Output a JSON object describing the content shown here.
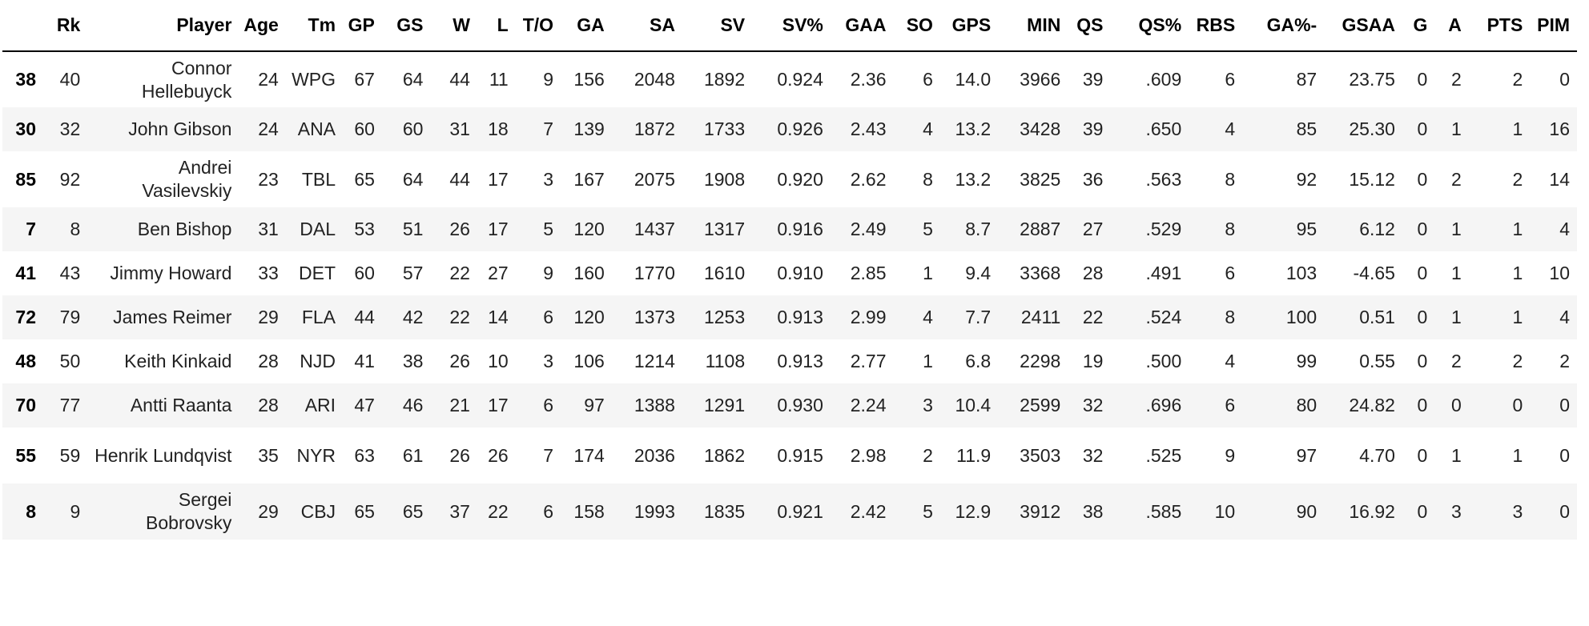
{
  "columns": [
    "",
    "Rk",
    "Player",
    "Age",
    "Tm",
    "GP",
    "GS",
    "W",
    "L",
    "T/O",
    "GA",
    "SA",
    "SV",
    "SV%",
    "GAA",
    "SO",
    "GPS",
    "MIN",
    "QS",
    "QS%",
    "RBS",
    "GA%-",
    "GSAA",
    "G",
    "A",
    "PTS",
    "PIM"
  ],
  "rows": [
    [
      "38",
      "40",
      "Connor Hellebuyck",
      "24",
      "WPG",
      "67",
      "64",
      "44",
      "11",
      "9",
      "156",
      "2048",
      "1892",
      "0.924",
      "2.36",
      "6",
      "14.0",
      "3966",
      "39",
      ".609",
      "6",
      "87",
      "23.75",
      "0",
      "2",
      "2",
      "0"
    ],
    [
      "30",
      "32",
      "John Gibson",
      "24",
      "ANA",
      "60",
      "60",
      "31",
      "18",
      "7",
      "139",
      "1872",
      "1733",
      "0.926",
      "2.43",
      "4",
      "13.2",
      "3428",
      "39",
      ".650",
      "4",
      "85",
      "25.30",
      "0",
      "1",
      "1",
      "16"
    ],
    [
      "85",
      "92",
      "Andrei Vasilevskiy",
      "23",
      "TBL",
      "65",
      "64",
      "44",
      "17",
      "3",
      "167",
      "2075",
      "1908",
      "0.920",
      "2.62",
      "8",
      "13.2",
      "3825",
      "36",
      ".563",
      "8",
      "92",
      "15.12",
      "0",
      "2",
      "2",
      "14"
    ],
    [
      "7",
      "8",
      "Ben Bishop",
      "31",
      "DAL",
      "53",
      "51",
      "26",
      "17",
      "5",
      "120",
      "1437",
      "1317",
      "0.916",
      "2.49",
      "5",
      "8.7",
      "2887",
      "27",
      ".529",
      "8",
      "95",
      "6.12",
      "0",
      "1",
      "1",
      "4"
    ],
    [
      "41",
      "43",
      "Jimmy Howard",
      "33",
      "DET",
      "60",
      "57",
      "22",
      "27",
      "9",
      "160",
      "1770",
      "1610",
      "0.910",
      "2.85",
      "1",
      "9.4",
      "3368",
      "28",
      ".491",
      "6",
      "103",
      "-4.65",
      "0",
      "1",
      "1",
      "10"
    ],
    [
      "72",
      "79",
      "James Reimer",
      "29",
      "FLA",
      "44",
      "42",
      "22",
      "14",
      "6",
      "120",
      "1373",
      "1253",
      "0.913",
      "2.99",
      "4",
      "7.7",
      "2411",
      "22",
      ".524",
      "8",
      "100",
      "0.51",
      "0",
      "1",
      "1",
      "4"
    ],
    [
      "48",
      "50",
      "Keith Kinkaid",
      "28",
      "NJD",
      "41",
      "38",
      "26",
      "10",
      "3",
      "106",
      "1214",
      "1108",
      "0.913",
      "2.77",
      "1",
      "6.8",
      "2298",
      "19",
      ".500",
      "4",
      "99",
      "0.55",
      "0",
      "2",
      "2",
      "2"
    ],
    [
      "70",
      "77",
      "Antti Raanta",
      "28",
      "ARI",
      "47",
      "46",
      "21",
      "17",
      "6",
      "97",
      "1388",
      "1291",
      "0.930",
      "2.24",
      "3",
      "10.4",
      "2599",
      "32",
      ".696",
      "6",
      "80",
      "24.82",
      "0",
      "0",
      "0",
      "0"
    ],
    [
      "55",
      "59",
      "Henrik Lundqvist",
      "35",
      "NYR",
      "63",
      "61",
      "26",
      "26",
      "7",
      "174",
      "2036",
      "1862",
      "0.915",
      "2.98",
      "2",
      "11.9",
      "3503",
      "32",
      ".525",
      "9",
      "97",
      "4.70",
      "0",
      "1",
      "1",
      "0"
    ],
    [
      "8",
      "9",
      "Sergei Bobrovsky",
      "29",
      "CBJ",
      "65",
      "65",
      "37",
      "22",
      "6",
      "158",
      "1993",
      "1835",
      "0.921",
      "2.42",
      "5",
      "12.9",
      "3912",
      "38",
      ".585",
      "10",
      "90",
      "16.92",
      "0",
      "3",
      "3",
      "0"
    ]
  ]
}
